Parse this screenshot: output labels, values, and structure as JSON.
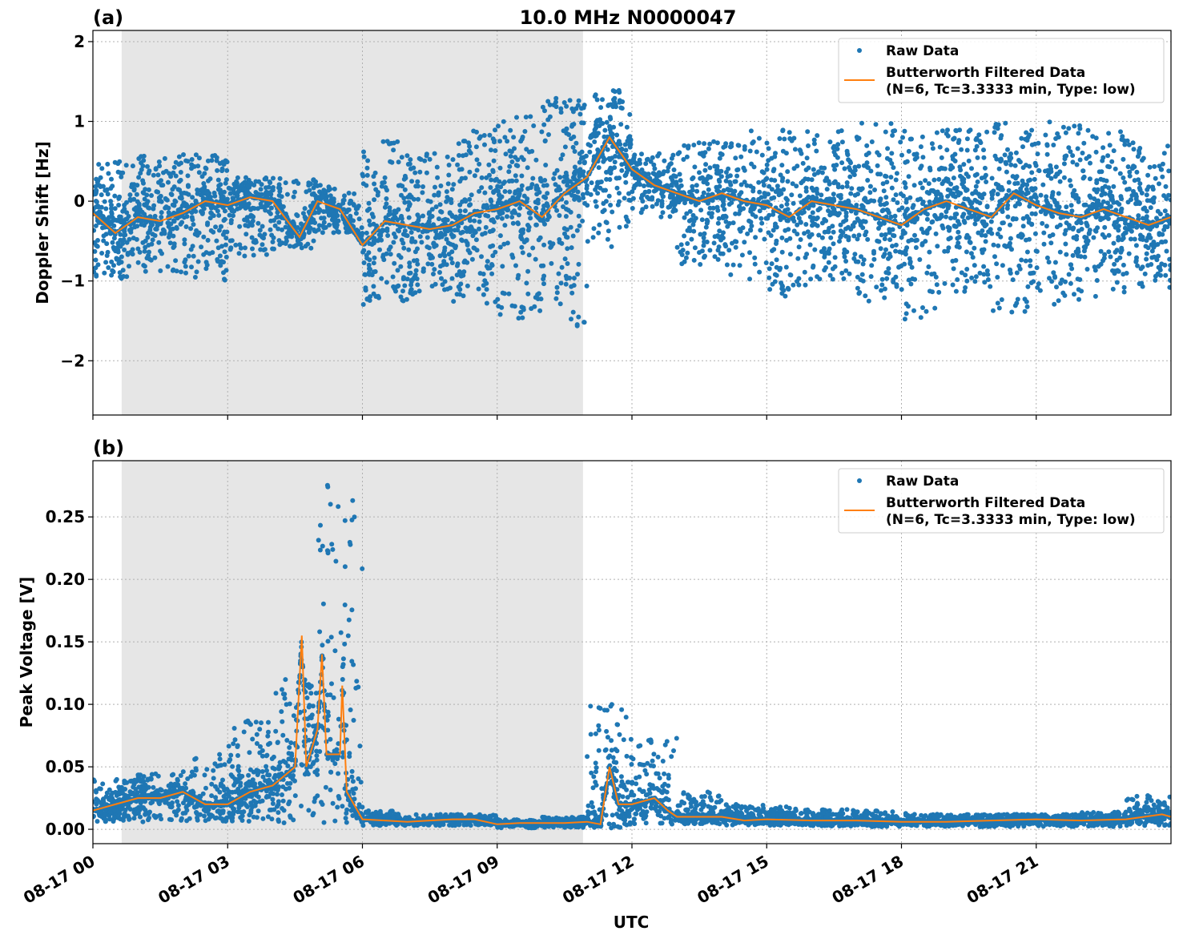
{
  "title": "10.0 MHz N0000047",
  "colors": {
    "raw": "#1f77b4",
    "filtered": "#ff7f0e",
    "shade": "#e6e6e6"
  },
  "chart_data": [
    {
      "type": "scatter",
      "panel_label": "(a)",
      "ylabel": "Doppler Shift [Hz]",
      "xlabel": "",
      "xlim_hours": [
        0,
        24
      ],
      "ylim": [
        -2.68,
        2.14
      ],
      "yticks": [
        2,
        1,
        0,
        -1,
        -2
      ],
      "ytick_labels": [
        "2",
        "1",
        "0",
        "−1",
        "−2"
      ],
      "grid": true,
      "legend_position": "top-right",
      "legend": [
        "Raw Data",
        "Butterworth Filtered Data",
        "(N=6, Tc=3.3333 min, Type: low)"
      ],
      "shaded_region_hours": [
        0.64,
        10.91
      ],
      "filtered": {
        "x": [
          0,
          0.5,
          1,
          1.5,
          2,
          2.5,
          3,
          3.5,
          4,
          4.6,
          5,
          5.5,
          6,
          6.5,
          7,
          7.5,
          8,
          8.5,
          9,
          9.5,
          10,
          10.5,
          11,
          11.5,
          12,
          12.5,
          13,
          13.5,
          14,
          14.5,
          15,
          15.5,
          16,
          16.5,
          17,
          17.5,
          18,
          18.5,
          19,
          19.5,
          20,
          20.5,
          21,
          21.5,
          22,
          22.5,
          23,
          23.5,
          24
        ],
        "y": [
          -0.15,
          -0.4,
          -0.2,
          -0.25,
          -0.15,
          0.0,
          -0.05,
          0.05,
          0.0,
          -0.45,
          0.0,
          -0.1,
          -0.55,
          -0.25,
          -0.3,
          -0.35,
          -0.3,
          -0.15,
          -0.1,
          0.0,
          -0.2,
          0.1,
          0.3,
          0.8,
          0.4,
          0.2,
          0.1,
          0.0,
          0.1,
          0.0,
          -0.05,
          -0.2,
          0.0,
          -0.05,
          -0.1,
          -0.2,
          -0.3,
          -0.1,
          0.0,
          -0.1,
          -0.2,
          0.1,
          -0.05,
          -0.15,
          -0.2,
          -0.1,
          -0.2,
          -0.3,
          -0.2
        ]
      },
      "raw_hourly_min": [
        -1.0,
        -0.9,
        -1.0,
        -0.7,
        -0.6,
        -0.4,
        -1.3,
        -1.2,
        -1.3,
        -1.5,
        -1.6,
        -0.6,
        -0.2,
        -0.8,
        -1.0,
        -1.2,
        -1.0,
        -1.3,
        -1.5,
        -1.2,
        -1.4,
        -1.3,
        -1.2,
        -1.1
      ],
      "raw_hourly_max": [
        0.5,
        0.6,
        0.6,
        0.3,
        0.3,
        0.2,
        0.8,
        0.6,
        0.9,
        1.1,
        1.3,
        1.4,
        0.6,
        0.8,
        0.9,
        0.9,
        0.9,
        1.0,
        0.9,
        0.9,
        1.0,
        1.0,
        0.9,
        0.8
      ]
    },
    {
      "type": "scatter",
      "panel_label": "(b)",
      "ylabel": "Peak Voltage [V]",
      "xlabel": "UTC",
      "xlim_hours": [
        0,
        24
      ],
      "ylim": [
        -0.0115,
        0.295
      ],
      "yticks": [
        0.0,
        0.05,
        0.1,
        0.15,
        0.2,
        0.25
      ],
      "ytick_labels": [
        "0.00",
        "0.05",
        "0.10",
        "0.15",
        "0.20",
        "0.25"
      ],
      "xtick_labels": [
        "08-17 00",
        "08-17 03",
        "08-17 06",
        "08-17 09",
        "08-17 12",
        "08-17 15",
        "08-17 18",
        "08-17 21"
      ],
      "grid": true,
      "legend_position": "top-right",
      "legend": [
        "Raw Data",
        "Butterworth Filtered Data",
        "(N=6, Tc=3.3333 min, Type: low)"
      ],
      "shaded_region_hours": [
        0.64,
        10.91
      ],
      "filtered": {
        "x": [
          0,
          0.5,
          1,
          1.5,
          2,
          2.5,
          3,
          3.5,
          4,
          4.5,
          4.65,
          4.75,
          5,
          5.1,
          5.2,
          5.5,
          5.55,
          5.65,
          6,
          6.5,
          7,
          7.5,
          8,
          8.5,
          9,
          9.5,
          10,
          10.5,
          11,
          11.3,
          11.5,
          11.7,
          12,
          12.5,
          12.8,
          13,
          13.5,
          14,
          14.5,
          15,
          16,
          17,
          18,
          19,
          20,
          21,
          22,
          23,
          23.8,
          24
        ],
        "y": [
          0.015,
          0.02,
          0.025,
          0.025,
          0.03,
          0.02,
          0.02,
          0.03,
          0.035,
          0.05,
          0.155,
          0.05,
          0.08,
          0.14,
          0.06,
          0.06,
          0.115,
          0.03,
          0.008,
          0.007,
          0.006,
          0.007,
          0.008,
          0.008,
          0.004,
          0.005,
          0.005,
          0.005,
          0.006,
          0.004,
          0.05,
          0.02,
          0.02,
          0.025,
          0.015,
          0.01,
          0.01,
          0.01,
          0.007,
          0.008,
          0.007,
          0.007,
          0.006,
          0.006,
          0.007,
          0.008,
          0.007,
          0.008,
          0.012,
          0.01
        ]
      },
      "raw_hourly_min": [
        0.006,
        0.006,
        0.006,
        0.006,
        0.005,
        0.005,
        0.003,
        0.003,
        0.003,
        0.001,
        0.001,
        0.001,
        0.004,
        0.004,
        0.003,
        0.003,
        0.002,
        0.002,
        0.002,
        0.002,
        0.002,
        0.002,
        0.002,
        0.003
      ],
      "raw_hourly_max": [
        0.04,
        0.045,
        0.06,
        0.09,
        0.12,
        0.28,
        0.015,
        0.012,
        0.012,
        0.008,
        0.01,
        0.1,
        0.075,
        0.03,
        0.02,
        0.018,
        0.016,
        0.015,
        0.013,
        0.012,
        0.012,
        0.012,
        0.014,
        0.027
      ]
    }
  ]
}
